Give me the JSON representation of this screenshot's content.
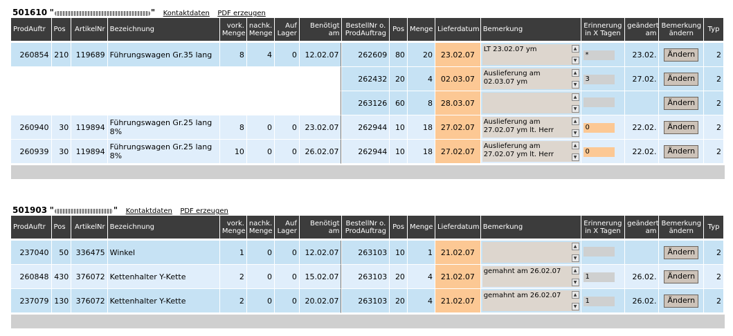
{
  "columns": {
    "prodauftr": "ProdAuftr",
    "pos": "Pos",
    "artikelnr": "ArtikelNr",
    "bezeichnung": "Bezeichnung",
    "vork_menge_1": "vork.",
    "vork_menge_2": "Menge",
    "nachk_menge_1": "nachk.",
    "nachk_menge_2": "Menge",
    "auf_lager_1": "Auf",
    "auf_lager_2": "Lager",
    "benoetigt_1": "Benötigt",
    "benoetigt_2": "am",
    "bestellnr_1": "BestellNr o.",
    "bestellnr_2": "ProdAuftrag",
    "pos2": "Pos",
    "menge": "Menge",
    "lieferdatum": "Lieferdatum",
    "bemerkung": "Bemerkung",
    "erinnerung_1": "Erinnerung",
    "erinnerung_2": "in X Tagen",
    "geaendert_1": "geändert",
    "geaendert_2": "am",
    "bem_aendern_1": "Bemerkung",
    "bem_aendern_2": "ändern",
    "typ": "Typ"
  },
  "links": {
    "kontakt": "Kontaktdaten",
    "pdf": "PDF erzeugen"
  },
  "button_label": "Ändern",
  "colors": {
    "header": "#3c3c3c",
    "row_blue": "#c6e2f4",
    "row_light": "#e0eefb",
    "date_orange": "#fcc894",
    "footer": "#cfcfcf"
  },
  "orders": [
    {
      "number": "501610",
      "rows": [
        {
          "prodauftr": "260854",
          "pos": "210",
          "artikelnr": "119689",
          "bezeichnung": "Führungswagen Gr.35 lang",
          "vork": "8",
          "nachk": "4",
          "lager": "0",
          "benoetigt": "12.02.07",
          "bestellnr": "262609",
          "pos2": "80",
          "menge": "20",
          "lieferdatum": "23.02.07",
          "bemerkung": "LT 23.02.07 ym",
          "erinnerung": "*",
          "geaendert": "23.02.",
          "typ": "2"
        },
        {
          "prodauftr": "",
          "pos": "",
          "artikelnr": "",
          "bezeichnung": "",
          "vork": "",
          "nachk": "",
          "lager": "",
          "benoetigt": "",
          "bestellnr": "262432",
          "pos2": "20",
          "menge": "4",
          "lieferdatum": "02.03.07",
          "bemerkung": "Auslieferung am 02.03.07 ym",
          "erinnerung": "3",
          "geaendert": "27.02.",
          "typ": "2"
        },
        {
          "prodauftr": "",
          "pos": "",
          "artikelnr": "",
          "bezeichnung": "",
          "vork": "",
          "nachk": "",
          "lager": "",
          "benoetigt": "",
          "bestellnr": "263126",
          "pos2": "60",
          "menge": "8",
          "lieferdatum": "28.03.07",
          "bemerkung": "",
          "erinnerung": "",
          "geaendert": "",
          "typ": "2"
        },
        {
          "prodauftr": "260940",
          "pos": "30",
          "artikelnr": "119894",
          "bezeichnung": "Führungswagen Gr.25 lang 8%",
          "vork": "8",
          "nachk": "0",
          "lager": "0",
          "benoetigt": "23.02.07",
          "bestellnr": "262944",
          "pos2": "10",
          "menge": "18",
          "lieferdatum": "27.02.07",
          "bemerkung": "Auslieferung am 27.02.07 ym lt. Herr",
          "erinnerung": "0",
          "geaendert": "22.02.",
          "typ": "2"
        },
        {
          "prodauftr": "260939",
          "pos": "30",
          "artikelnr": "119894",
          "bezeichnung": "Führungswagen Gr.25 lang 8%",
          "vork": "10",
          "nachk": "0",
          "lager": "0",
          "benoetigt": "26.02.07",
          "bestellnr": "262944",
          "pos2": "10",
          "menge": "18",
          "lieferdatum": "27.02.07",
          "bemerkung": "Auslieferung am 27.02.07 ym lt. Herr",
          "erinnerung": "0",
          "geaendert": "22.02.",
          "typ": "2"
        }
      ]
    },
    {
      "number": "501903",
      "rows": [
        {
          "prodauftr": "237040",
          "pos": "50",
          "artikelnr": "336475",
          "bezeichnung": "Winkel",
          "vork": "1",
          "nachk": "0",
          "lager": "0",
          "benoetigt": "12.02.07",
          "bestellnr": "263103",
          "pos2": "10",
          "menge": "1",
          "lieferdatum": "21.02.07",
          "bemerkung": "",
          "erinnerung": "",
          "geaendert": "",
          "typ": "2"
        },
        {
          "prodauftr": "260848",
          "pos": "430",
          "artikelnr": "376072",
          "bezeichnung": "Kettenhalter Y-Kette",
          "vork": "2",
          "nachk": "0",
          "lager": "0",
          "benoetigt": "15.02.07",
          "bestellnr": "263103",
          "pos2": "20",
          "menge": "4",
          "lieferdatum": "21.02.07",
          "bemerkung": "gemahnt am 26.02.07",
          "erinnerung": "1",
          "geaendert": "26.02.",
          "typ": "2"
        },
        {
          "prodauftr": "237079",
          "pos": "130",
          "artikelnr": "376072",
          "bezeichnung": "Kettenhalter Y-Kette",
          "vork": "2",
          "nachk": "0",
          "lager": "0",
          "benoetigt": "20.02.07",
          "bestellnr": "263103",
          "pos2": "20",
          "menge": "4",
          "lieferdatum": "21.02.07",
          "bemerkung": "gemahnt am 26.02.07",
          "erinnerung": "1",
          "geaendert": "26.02.",
          "typ": "2"
        }
      ]
    }
  ]
}
